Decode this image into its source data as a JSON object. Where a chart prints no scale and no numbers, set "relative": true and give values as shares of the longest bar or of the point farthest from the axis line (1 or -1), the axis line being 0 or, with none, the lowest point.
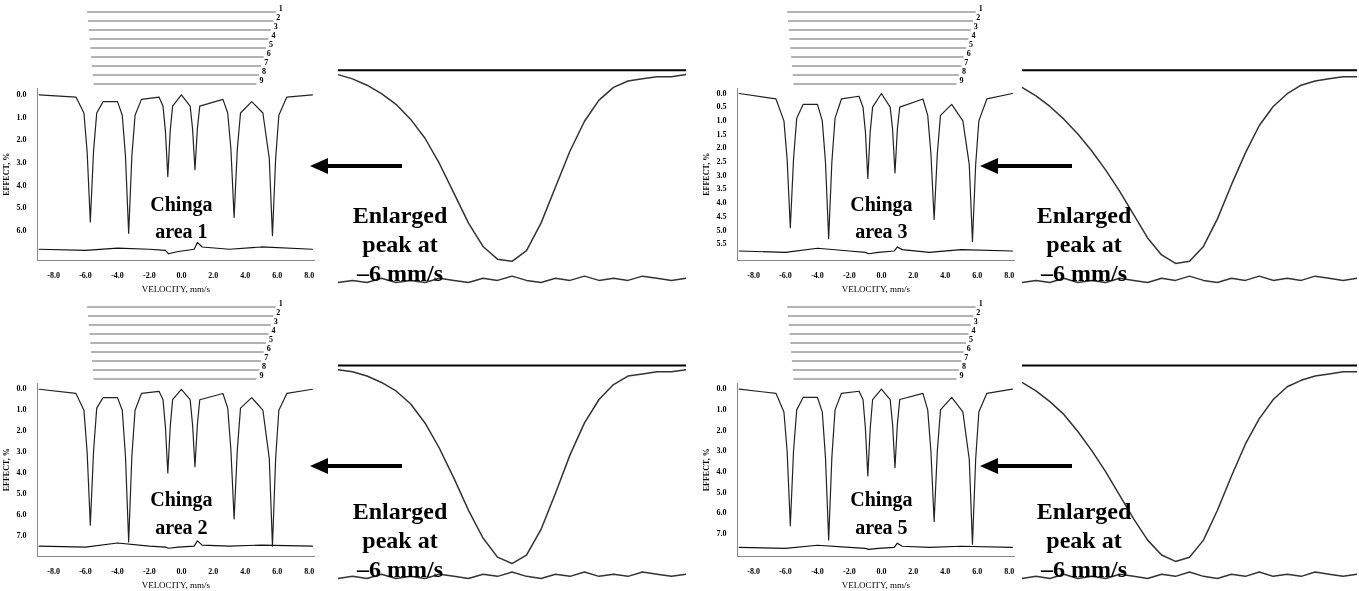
{
  "chart_data": [
    {
      "type": "line",
      "title": "Chinga area 1",
      "xlabel": "VELOCITY, mm/s",
      "ylabel": "EFFECT, %",
      "annotations": [
        "1",
        "2",
        "3",
        "4",
        "5",
        "6",
        "7",
        "8",
        "9"
      ],
      "grid": false,
      "legend": false,
      "marker": "none",
      "line_style": "solid",
      "xlim": [
        -9,
        8.3
      ],
      "xticks": [
        {
          "value": -8,
          "label": "-8.0"
        },
        {
          "value": -6,
          "label": "-6.0"
        },
        {
          "value": -4,
          "label": "-4.0"
        },
        {
          "value": -2,
          "label": "-2.0"
        },
        {
          "value": 0,
          "label": "0.0"
        },
        {
          "value": 2,
          "label": "2.0"
        },
        {
          "value": 4,
          "label": "4.0"
        },
        {
          "value": 6,
          "label": "6.0"
        },
        {
          "value": 8,
          "label": "8.0"
        }
      ],
      "ylim": [
        7.3,
        -0.3
      ],
      "yticks": [
        {
          "value": 0,
          "label": "0.0"
        },
        {
          "value": 1,
          "label": "1.0"
        },
        {
          "value": 2,
          "label": "2.0"
        },
        {
          "value": 3,
          "label": "3.0"
        },
        {
          "value": 4,
          "label": "4.0"
        },
        {
          "value": 5,
          "label": "5.0"
        },
        {
          "value": 6,
          "label": "6.0"
        }
      ],
      "series": [
        {
          "color": "#222222",
          "x": [
            -8.9,
            -6.6,
            -6.1,
            -5.9,
            -5.7,
            -5.5,
            -5.3,
            -4.9,
            -4.0,
            -3.7,
            -3.5,
            -3.3,
            -3.1,
            -2.9,
            -2.5,
            -1.4,
            -1.15,
            -1.0,
            -0.85,
            -0.7,
            -0.55,
            0,
            0.55,
            0.7,
            0.85,
            1.0,
            1.15,
            2.6,
            2.9,
            3.1,
            3.3,
            3.5,
            3.7,
            4.4,
            5.1,
            5.5,
            5.7,
            5.9,
            6.1,
            6.6,
            8.2
          ],
          "values": [
            0.0,
            0.1,
            0.8,
            2.5,
            5.6,
            2.5,
            0.8,
            0.3,
            0.3,
            0.9,
            2.7,
            6.1,
            2.7,
            0.9,
            0.2,
            0.1,
            0.5,
            1.6,
            3.6,
            1.6,
            0.5,
            0.0,
            0.5,
            1.5,
            3.3,
            1.5,
            0.5,
            0.2,
            0.8,
            2.4,
            5.4,
            2.4,
            0.8,
            0.3,
            0.8,
            2.8,
            6.2,
            2.8,
            0.9,
            0.1,
            0.0
          ]
        },
        {
          "color": "#111111",
          "x": [
            -8.9,
            -6,
            -4,
            -2,
            -1,
            -0.8,
            -0.2,
            0.8,
            1.0,
            1.3,
            3,
            5,
            8.2
          ],
          "values": [
            6.8,
            6.85,
            6.75,
            6.8,
            6.85,
            7.0,
            6.9,
            6.8,
            6.5,
            6.7,
            6.8,
            6.7,
            6.8
          ]
        }
      ]
    },
    {
      "type": "line",
      "relative": true,
      "annotations": [
        "Enlarged peak at –6 mm/s"
      ],
      "legend": false,
      "marker": "none",
      "tick_labels": false,
      "categories": [
        null,
        null,
        null,
        null,
        null,
        null,
        null,
        null,
        null,
        null,
        null,
        null,
        null,
        null,
        null,
        null,
        null,
        null,
        null,
        null,
        null,
        null,
        null,
        null,
        null
      ],
      "series": [
        {
          "color": "#333333",
          "values": [
            -0.02,
            -0.04,
            -0.07,
            -0.11,
            -0.16,
            -0.23,
            -0.32,
            -0.44,
            -0.58,
            -0.72,
            -0.83,
            -0.89,
            -0.9,
            -0.85,
            -0.72,
            -0.55,
            -0.38,
            -0.24,
            -0.14,
            -0.08,
            -0.05,
            -0.04,
            -0.03,
            -0.03,
            -0.02
          ]
        },
        {
          "color": "#333333",
          "values": [
            -1,
            -0.99,
            -1,
            -0.98,
            -1,
            -0.99,
            -1,
            -0.98,
            -0.99,
            -1,
            -0.98,
            -0.99,
            -0.97,
            -0.99,
            -1,
            -0.98,
            -0.99,
            -0.97,
            -0.99,
            -0.98,
            -0.99,
            -0.97,
            -0.98,
            -0.99,
            -0.98
          ]
        }
      ]
    },
    {
      "type": "line",
      "title": "Chinga area 3",
      "xlabel": "VELOCITY, mm/s",
      "ylabel": "EFFECT, %",
      "annotations": [
        "1",
        "2",
        "3",
        "4",
        "5",
        "6",
        "7",
        "8",
        "9"
      ],
      "grid": false,
      "legend": false,
      "marker": "none",
      "line_style": "solid",
      "xlim": [
        -9,
        8.3
      ],
      "xticks": [
        {
          "value": -8,
          "label": "-8.0"
        },
        {
          "value": -6,
          "label": "-6.0"
        },
        {
          "value": -4,
          "label": "-4.0"
        },
        {
          "value": -2,
          "label": "-2.0"
        },
        {
          "value": 0,
          "label": "0.0"
        },
        {
          "value": 2,
          "label": "2.0"
        },
        {
          "value": 4,
          "label": "4.0"
        },
        {
          "value": 6,
          "label": "6.0"
        },
        {
          "value": 8,
          "label": "8.0"
        }
      ],
      "ylim": [
        6.1,
        -0.2
      ],
      "yticks": [
        {
          "value": 0,
          "label": "0.0"
        },
        {
          "value": 0.5,
          "label": "0.5"
        },
        {
          "value": 1,
          "label": "1.0"
        },
        {
          "value": 1.5,
          "label": "1.5"
        },
        {
          "value": 2,
          "label": "2.0"
        },
        {
          "value": 2.5,
          "label": "2.5"
        },
        {
          "value": 3,
          "label": "3.0"
        },
        {
          "value": 3.5,
          "label": "3.5"
        },
        {
          "value": 4,
          "label": "4.0"
        },
        {
          "value": 4.5,
          "label": "4.5"
        },
        {
          "value": 5,
          "label": "5.0"
        },
        {
          "value": 5.5,
          "label": "5.5"
        }
      ],
      "series": [
        {
          "color": "#222222",
          "x": [
            -8.9,
            -6.6,
            -6.1,
            -5.9,
            -5.7,
            -5.5,
            -5.3,
            -4.9,
            -4.0,
            -3.7,
            -3.5,
            -3.3,
            -3.1,
            -2.9,
            -2.5,
            -1.4,
            -1.15,
            -1.0,
            -0.85,
            -0.7,
            -0.55,
            0,
            0.55,
            0.7,
            0.85,
            1.0,
            1.15,
            2.6,
            2.9,
            3.1,
            3.3,
            3.5,
            3.7,
            4.4,
            5.1,
            5.5,
            5.7,
            5.9,
            6.1,
            6.6,
            8.2
          ],
          "values": [
            0.0,
            0.2,
            1.0,
            2.4,
            4.9,
            2.4,
            0.9,
            0.4,
            0.4,
            1.0,
            2.5,
            5.3,
            2.5,
            0.9,
            0.2,
            0.1,
            0.5,
            1.4,
            3.1,
            1.4,
            0.5,
            0.0,
            0.5,
            1.3,
            2.9,
            1.3,
            0.5,
            0.2,
            0.8,
            2.2,
            4.6,
            2.2,
            0.8,
            0.4,
            1.0,
            2.6,
            5.4,
            2.6,
            1.0,
            0.2,
            0.0
          ]
        },
        {
          "color": "#111111",
          "x": [
            -8.9,
            -6,
            -4,
            -2,
            -1,
            -0.8,
            -0.2,
            0.8,
            1.0,
            1.3,
            3,
            5,
            8.2
          ],
          "values": [
            5.75,
            5.8,
            5.65,
            5.75,
            5.8,
            5.85,
            5.8,
            5.75,
            5.6,
            5.7,
            5.8,
            5.7,
            5.75
          ]
        }
      ]
    },
    {
      "type": "line",
      "relative": true,
      "annotations": [
        "Enlarged peak at –6 mm/s"
      ],
      "legend": false,
      "marker": "none",
      "tick_labels": false,
      "categories": [
        null,
        null,
        null,
        null,
        null,
        null,
        null,
        null,
        null,
        null,
        null,
        null,
        null,
        null,
        null,
        null,
        null,
        null,
        null,
        null,
        null,
        null,
        null,
        null,
        null
      ],
      "series": [
        {
          "color": "#333333",
          "values": [
            -0.08,
            -0.12,
            -0.17,
            -0.23,
            -0.3,
            -0.38,
            -0.47,
            -0.57,
            -0.68,
            -0.79,
            -0.87,
            -0.91,
            -0.9,
            -0.83,
            -0.7,
            -0.54,
            -0.39,
            -0.26,
            -0.17,
            -0.11,
            -0.07,
            -0.05,
            -0.04,
            -0.03,
            -0.03
          ]
        },
        {
          "color": "#333333",
          "values": [
            -1,
            -0.99,
            -1,
            -0.98,
            -1,
            -0.99,
            -1,
            -0.98,
            -0.99,
            -1,
            -0.98,
            -0.99,
            -0.97,
            -0.99,
            -1,
            -0.98,
            -0.99,
            -0.97,
            -0.99,
            -0.98,
            -0.99,
            -0.97,
            -0.98,
            -0.99,
            -0.98
          ]
        }
      ]
    },
    {
      "type": "line",
      "title": "Chinga area 2",
      "xlabel": "VELOCITY, mm/s",
      "ylabel": "EFFECT, %",
      "annotations": [
        "1",
        "2",
        "3",
        "4",
        "5",
        "6",
        "7",
        "8",
        "9"
      ],
      "grid": false,
      "legend": false,
      "marker": "none",
      "line_style": "solid",
      "xlim": [
        -9,
        8.3
      ],
      "xticks": [
        {
          "value": -8,
          "label": "-8.0"
        },
        {
          "value": -6,
          "label": "-6.0"
        },
        {
          "value": -4,
          "label": "-4.0"
        },
        {
          "value": -2,
          "label": "-2.0"
        },
        {
          "value": 0,
          "label": "0.0"
        },
        {
          "value": 2,
          "label": "2.0"
        },
        {
          "value": 4,
          "label": "4.0"
        },
        {
          "value": 6,
          "label": "6.0"
        },
        {
          "value": 8,
          "label": "8.0"
        }
      ],
      "ylim": [
        8.0,
        -0.3
      ],
      "yticks": [
        {
          "value": 0,
          "label": "0.0"
        },
        {
          "value": 1,
          "label": "1.0"
        },
        {
          "value": 2,
          "label": "2.0"
        },
        {
          "value": 3,
          "label": "3.0"
        },
        {
          "value": 4,
          "label": "4.0"
        },
        {
          "value": 5,
          "label": "5.0"
        },
        {
          "value": 6,
          "label": "6.0"
        },
        {
          "value": 7,
          "label": "7.0"
        }
      ],
      "series": [
        {
          "color": "#222222",
          "x": [
            -8.9,
            -6.6,
            -6.1,
            -5.9,
            -5.7,
            -5.5,
            -5.3,
            -4.9,
            -4.0,
            -3.7,
            -3.5,
            -3.3,
            -3.1,
            -2.9,
            -2.5,
            -1.4,
            -1.15,
            -1.0,
            -0.85,
            -0.7,
            -0.55,
            0,
            0.55,
            0.7,
            0.85,
            1.0,
            1.15,
            2.6,
            2.9,
            3.1,
            3.3,
            3.5,
            3.7,
            4.4,
            5.1,
            5.5,
            5.7,
            5.9,
            6.1,
            6.6,
            8.2
          ],
          "values": [
            0.0,
            0.2,
            1.0,
            3.0,
            6.5,
            3.0,
            0.9,
            0.4,
            0.4,
            1.0,
            3.2,
            7.3,
            3.2,
            1.0,
            0.2,
            0.1,
            0.5,
            1.8,
            4.0,
            1.8,
            0.5,
            0.0,
            0.5,
            1.7,
            3.7,
            1.7,
            0.5,
            0.2,
            0.9,
            2.9,
            6.2,
            2.9,
            0.9,
            0.4,
            1.0,
            3.3,
            7.5,
            3.3,
            1.0,
            0.2,
            0.0
          ]
        },
        {
          "color": "#111111",
          "x": [
            -8.9,
            -6,
            -4,
            -2,
            -1,
            -0.8,
            -0.2,
            0.8,
            1.0,
            1.3,
            3,
            5,
            8.2
          ],
          "values": [
            7.5,
            7.55,
            7.35,
            7.5,
            7.55,
            7.6,
            7.55,
            7.5,
            7.25,
            7.45,
            7.5,
            7.45,
            7.5
          ]
        }
      ]
    },
    {
      "type": "line",
      "relative": true,
      "annotations": [
        "Enlarged peak at –6 mm/s"
      ],
      "legend": false,
      "marker": "none",
      "tick_labels": false,
      "categories": [
        null,
        null,
        null,
        null,
        null,
        null,
        null,
        null,
        null,
        null,
        null,
        null,
        null,
        null,
        null,
        null,
        null,
        null,
        null,
        null,
        null,
        null,
        null,
        null,
        null
      ],
      "series": [
        {
          "color": "#333333",
          "values": [
            -0.02,
            -0.03,
            -0.05,
            -0.08,
            -0.12,
            -0.18,
            -0.27,
            -0.39,
            -0.53,
            -0.68,
            -0.81,
            -0.9,
            -0.93,
            -0.89,
            -0.77,
            -0.6,
            -0.42,
            -0.27,
            -0.16,
            -0.09,
            -0.05,
            -0.04,
            -0.03,
            -0.03,
            -0.02
          ]
        },
        {
          "color": "#333333",
          "values": [
            -1,
            -0.99,
            -1,
            -0.98,
            -1,
            -0.99,
            -1,
            -0.98,
            -0.99,
            -1,
            -0.98,
            -0.99,
            -0.97,
            -0.99,
            -1,
            -0.98,
            -0.99,
            -0.97,
            -0.99,
            -0.98,
            -0.99,
            -0.97,
            -0.98,
            -0.99,
            -0.98
          ]
        }
      ]
    },
    {
      "type": "line",
      "title": "Chinga area 5",
      "xlabel": "VELOCITY, mm/s",
      "ylabel": "EFFECT, %",
      "annotations": [
        "1",
        "2",
        "3",
        "4",
        "5",
        "6",
        "7",
        "8",
        "9"
      ],
      "grid": false,
      "legend": false,
      "marker": "none",
      "line_style": "solid",
      "xlim": [
        -9,
        8.3
      ],
      "xticks": [
        {
          "value": -8,
          "label": "-8.0"
        },
        {
          "value": -6,
          "label": "-6.0"
        },
        {
          "value": -4,
          "label": "-4.0"
        },
        {
          "value": -2,
          "label": "-2.0"
        },
        {
          "value": 0,
          "label": "0.0"
        },
        {
          "value": 2,
          "label": "2.0"
        },
        {
          "value": 4,
          "label": "4.0"
        },
        {
          "value": 6,
          "label": "6.0"
        },
        {
          "value": 8,
          "label": "8.0"
        }
      ],
      "ylim": [
        8.1,
        -0.3
      ],
      "yticks": [
        {
          "value": 0,
          "label": "0.0"
        },
        {
          "value": 1,
          "label": "1.0"
        },
        {
          "value": 2,
          "label": "2.0"
        },
        {
          "value": 3,
          "label": "3.0"
        },
        {
          "value": 4,
          "label": "4.0"
        },
        {
          "value": 5,
          "label": "5.0"
        },
        {
          "value": 6,
          "label": "6.0"
        },
        {
          "value": 7,
          "label": "7.0"
        }
      ],
      "series": [
        {
          "color": "#222222",
          "x": [
            -8.9,
            -6.6,
            -6.1,
            -5.9,
            -5.7,
            -5.5,
            -5.3,
            -4.9,
            -4.0,
            -3.7,
            -3.5,
            -3.3,
            -3.1,
            -2.9,
            -2.5,
            -1.4,
            -1.15,
            -1.0,
            -0.85,
            -0.7,
            -0.55,
            0,
            0.55,
            0.7,
            0.85,
            1.0,
            1.15,
            2.6,
            2.9,
            3.1,
            3.3,
            3.5,
            3.7,
            4.4,
            5.1,
            5.5,
            5.7,
            5.9,
            6.1,
            6.6,
            8.2
          ],
          "values": [
            0.0,
            0.2,
            1.1,
            3.0,
            6.6,
            3.0,
            1.0,
            0.4,
            0.4,
            1.1,
            3.3,
            7.3,
            3.3,
            1.0,
            0.2,
            0.1,
            0.5,
            1.9,
            4.2,
            1.9,
            0.5,
            0.0,
            0.5,
            1.7,
            3.8,
            1.7,
            0.5,
            0.2,
            1.0,
            3.0,
            6.4,
            3.0,
            1.0,
            0.4,
            1.1,
            3.4,
            7.5,
            3.4,
            1.1,
            0.2,
            0.0
          ]
        },
        {
          "color": "#111111",
          "x": [
            -8.9,
            -6,
            -4,
            -2,
            -1,
            -0.8,
            -0.2,
            0.8,
            1.0,
            1.3,
            3,
            5,
            8.2
          ],
          "values": [
            7.65,
            7.7,
            7.55,
            7.65,
            7.7,
            7.75,
            7.7,
            7.65,
            7.45,
            7.6,
            7.65,
            7.6,
            7.65
          ]
        }
      ]
    },
    {
      "type": "line",
      "relative": true,
      "annotations": [
        "Enlarged peak at –6 mm/s"
      ],
      "legend": false,
      "marker": "none",
      "tick_labels": false,
      "categories": [
        null,
        null,
        null,
        null,
        null,
        null,
        null,
        null,
        null,
        null,
        null,
        null,
        null,
        null,
        null,
        null,
        null,
        null,
        null,
        null,
        null,
        null,
        null,
        null,
        null
      ],
      "series": [
        {
          "color": "#333333",
          "values": [
            -0.08,
            -0.12,
            -0.17,
            -0.23,
            -0.31,
            -0.4,
            -0.5,
            -0.61,
            -0.72,
            -0.82,
            -0.89,
            -0.92,
            -0.9,
            -0.82,
            -0.68,
            -0.52,
            -0.37,
            -0.25,
            -0.16,
            -0.1,
            -0.07,
            -0.05,
            -0.04,
            -0.03,
            -0.03
          ]
        },
        {
          "color": "#333333",
          "values": [
            -1,
            -0.99,
            -1,
            -0.98,
            -1,
            -0.99,
            -1,
            -0.98,
            -0.99,
            -1,
            -0.98,
            -0.99,
            -0.97,
            -0.99,
            -1,
            -0.98,
            -0.99,
            -0.97,
            -0.99,
            -0.98,
            -0.99,
            -0.97,
            -0.98,
            -0.99,
            -0.98
          ]
        }
      ]
    }
  ]
}
